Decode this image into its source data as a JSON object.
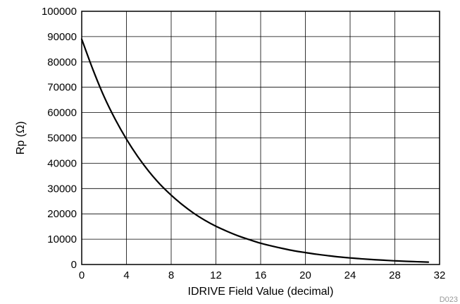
{
  "chart_data": {
    "type": "line",
    "title": "",
    "xlabel": "IDRIVE Field Value (decimal)",
    "ylabel": "Rp (Ω)",
    "xlim": [
      0,
      32
    ],
    "ylim": [
      0,
      100000
    ],
    "xticks": [
      0,
      4,
      8,
      12,
      16,
      20,
      24,
      28,
      32
    ],
    "yticks": [
      0,
      10000,
      20000,
      30000,
      40000,
      50000,
      60000,
      70000,
      80000,
      90000,
      100000
    ],
    "xtick_labels": [
      "0",
      "4",
      "8",
      "12",
      "16",
      "20",
      "24",
      "28",
      "32"
    ],
    "ytick_labels": [
      "0",
      "10000",
      "20000",
      "30000",
      "40000",
      "50000",
      "60000",
      "70000",
      "80000",
      "90000",
      "100000"
    ],
    "grid": true,
    "legend": "none",
    "series": [
      {
        "color": "#000000",
        "x": [
          0,
          1,
          2,
          3,
          4,
          5,
          6,
          7,
          8,
          9,
          10,
          11,
          12,
          13,
          14,
          15,
          16,
          17,
          18,
          19,
          20,
          21,
          22,
          23,
          24,
          25,
          26,
          27,
          28,
          29,
          30,
          31
        ],
        "y": [
          89000,
          77000,
          66300,
          57300,
          49500,
          42700,
          36800,
          31700,
          27400,
          23600,
          20300,
          17500,
          15100,
          13100,
          11300,
          9800,
          8400,
          7300,
          6300,
          5400,
          4700,
          4050,
          3500,
          3000,
          2600,
          2250,
          1950,
          1700,
          1450,
          1250,
          1100,
          950
        ]
      }
    ],
    "figure_id": "D023"
  }
}
